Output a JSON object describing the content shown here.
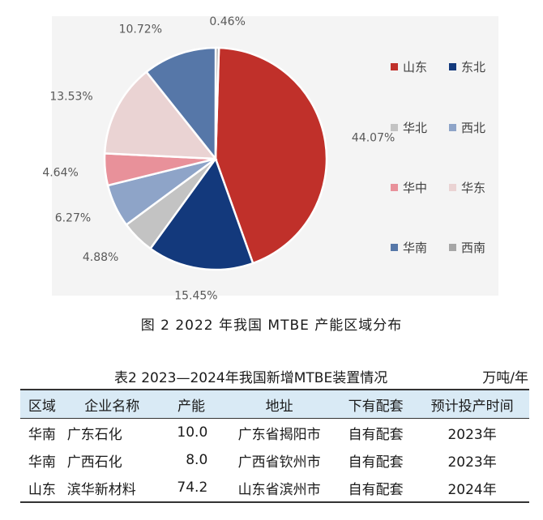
{
  "chart_data": {
    "type": "pie",
    "categories": [
      "山东",
      "东北",
      "华北",
      "西北",
      "华中",
      "华东",
      "华南",
      "西南"
    ],
    "values": [
      44.07,
      15.45,
      4.88,
      6.27,
      4.64,
      13.53,
      10.72,
      0.46
    ],
    "labels": [
      "44.07%",
      "15.45%",
      "4.88%",
      "6.27%",
      "4.64%",
      "13.53%",
      "10.72%",
      "0.46%"
    ],
    "colors": [
      "#c0302a",
      "#13397c",
      "#c3c3c3",
      "#8ea4c8",
      "#e8919a",
      "#ead3d3",
      "#5677a8",
      "#a6a6a6"
    ],
    "legend_position": "right"
  },
  "figure": {
    "caption": "图 2 2022 年我国 MTBE 产能区域分布"
  },
  "table": {
    "title": "表2 2023—2024年我国新增MTBE装置情况",
    "unit": "万吨/年",
    "headers": [
      "区域",
      "企业名称",
      "产能",
      "地址",
      "下有配套",
      "预计投产时间"
    ],
    "rows": [
      [
        "华南",
        "广东石化",
        "10.0",
        "广东省揭阳市",
        "自有配套",
        "2023年"
      ],
      [
        "华南",
        "广西石化",
        "8.0",
        "广西省钦州市",
        "自有配套",
        "2023年"
      ],
      [
        "山东",
        "滨华新材料",
        "74.2",
        "山东省滨州市",
        "自有配套",
        "2024年"
      ]
    ]
  }
}
